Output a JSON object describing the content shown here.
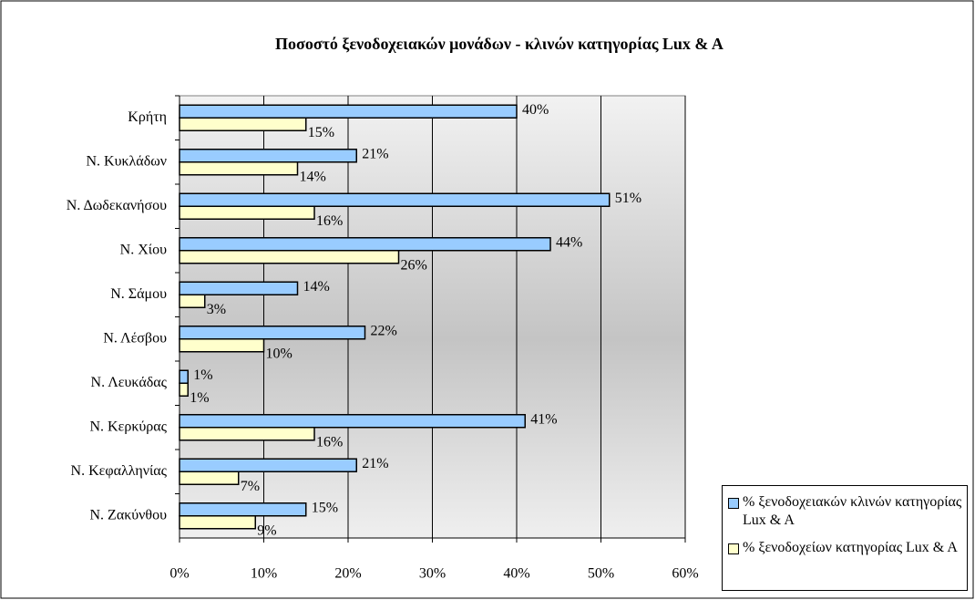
{
  "chart_data": {
    "type": "barh",
    "title": "Ποσοστό ξενοδοχειακών μονάδων - κλινών κατηγορίας Lux & A",
    "categories": [
      "Κρήτη",
      "Ν. Κυκλάδων",
      "Ν. Δωδεκανήσου",
      "Ν. Χίου",
      "Ν. Σάμου",
      "Ν. Λέσβου",
      "Ν. Λευκάδας",
      "Ν. Κερκύρας",
      "Ν. Κεφαλληνίας",
      "Ν. Ζακύνθου"
    ],
    "series": [
      {
        "name": "% ξενοδοχειακών κλινών κατηγορίας Lux & A",
        "color": "#99ccff",
        "values": [
          40,
          21,
          51,
          44,
          14,
          22,
          1,
          41,
          21,
          15
        ],
        "value_labels": [
          "40%",
          "21%",
          "51%",
          "44%",
          "14%",
          "22%",
          "1%",
          "41%",
          "21%",
          "15%"
        ]
      },
      {
        "name": "% ξενοδοχείων κατηγορίας Lux & A",
        "color": "#ffffcc",
        "values": [
          15,
          14,
          16,
          26,
          3,
          10,
          1,
          16,
          7,
          9
        ],
        "value_labels": [
          "15%",
          "14%",
          "16%",
          "26%",
          "3%",
          "10%",
          "1%",
          "16%",
          "7%",
          "9%"
        ]
      }
    ],
    "xlim": [
      0,
      60
    ],
    "xticks": [
      {
        "value": 0,
        "label": "0%"
      },
      {
        "value": 10,
        "label": "10%"
      },
      {
        "value": 20,
        "label": "20%"
      },
      {
        "value": 30,
        "label": "30%"
      },
      {
        "value": 40,
        "label": "40%"
      },
      {
        "value": 50,
        "label": "50%"
      },
      {
        "value": 60,
        "label": "60%"
      }
    ],
    "grid": true,
    "legend": "lower right"
  }
}
